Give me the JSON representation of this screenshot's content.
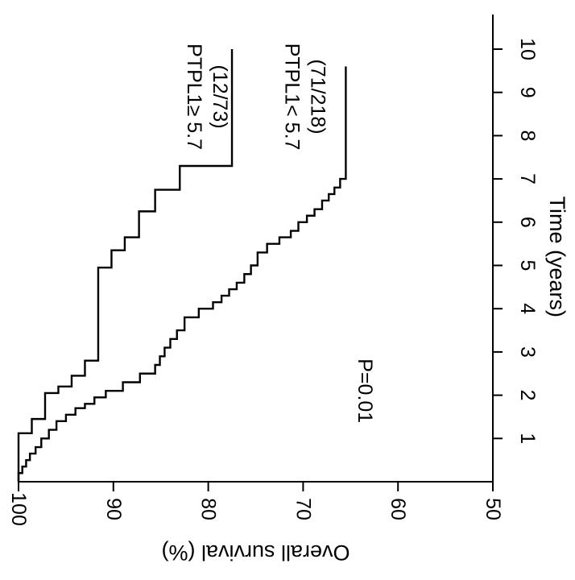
{
  "chart_data": {
    "type": "line",
    "step": true,
    "orientation": "rotated-90-clockwise",
    "title": "",
    "xlabel": "Time (years)",
    "ylabel": "Overall survival (%)",
    "xlim": [
      0,
      10.8
    ],
    "ylim": [
      50,
      100
    ],
    "x_ticks": [
      1,
      2,
      3,
      4,
      5,
      6,
      7,
      8,
      9,
      10
    ],
    "y_ticks": [
      50,
      60,
      70,
      80,
      90,
      100
    ],
    "grid": false,
    "annotations": [
      {
        "text": "P=0.01"
      }
    ],
    "series": [
      {
        "name": "PTPL1≥ 5.7 (12/73)",
        "label_line1": "PTPL1≥ 5.7",
        "label_line2": "(12/73)",
        "x": [
          0,
          1.12,
          1.12,
          1.45,
          1.45,
          2.05,
          2.05,
          2.2,
          2.2,
          2.45,
          2.45,
          2.8,
          2.8,
          4.95,
          4.95,
          5.35,
          5.35,
          5.65,
          5.65,
          6.25,
          6.25,
          6.75,
          6.75,
          7.3,
          7.3,
          10.0
        ],
        "y": [
          100,
          100,
          98.6,
          98.6,
          97.2,
          97.2,
          95.8,
          95.8,
          94.4,
          94.4,
          93.0,
          93.0,
          91.6,
          91.6,
          90.2,
          90.2,
          88.8,
          88.8,
          87.3,
          87.3,
          85.6,
          85.6,
          83.0,
          83.0,
          77.5,
          77.5
        ],
        "color": "#000000"
      },
      {
        "name": "PTPL1< 5.7 (71/218)",
        "label_line1": "PTPL1< 5.7",
        "label_line2": "(71/218)",
        "x": [
          0,
          0.2,
          0.35,
          0.5,
          0.65,
          0.8,
          1.0,
          1.2,
          1.4,
          1.55,
          1.7,
          1.8,
          1.95,
          2.1,
          2.3,
          2.5,
          2.7,
          2.9,
          3.1,
          3.3,
          3.5,
          3.8,
          4.0,
          4.15,
          4.3,
          4.45,
          4.6,
          4.8,
          5.0,
          5.3,
          5.5,
          5.65,
          5.8,
          6.0,
          6.15,
          6.3,
          6.5,
          6.65,
          6.8,
          7.0,
          9.6
        ],
        "y": [
          100,
          99.6,
          99.2,
          98.8,
          98.2,
          97.6,
          96.8,
          96.0,
          95.0,
          94.0,
          93.0,
          92.0,
          90.8,
          89.0,
          87.2,
          85.6,
          85.1,
          84.6,
          84.0,
          83.3,
          82.5,
          81.0,
          79.5,
          78.6,
          77.8,
          77.0,
          76.2,
          75.5,
          74.8,
          73.8,
          72.5,
          71.3,
          70.5,
          69.6,
          68.8,
          68.0,
          67.3,
          66.7,
          66.1,
          65.5,
          65.5
        ],
        "color": "#000000"
      }
    ]
  }
}
